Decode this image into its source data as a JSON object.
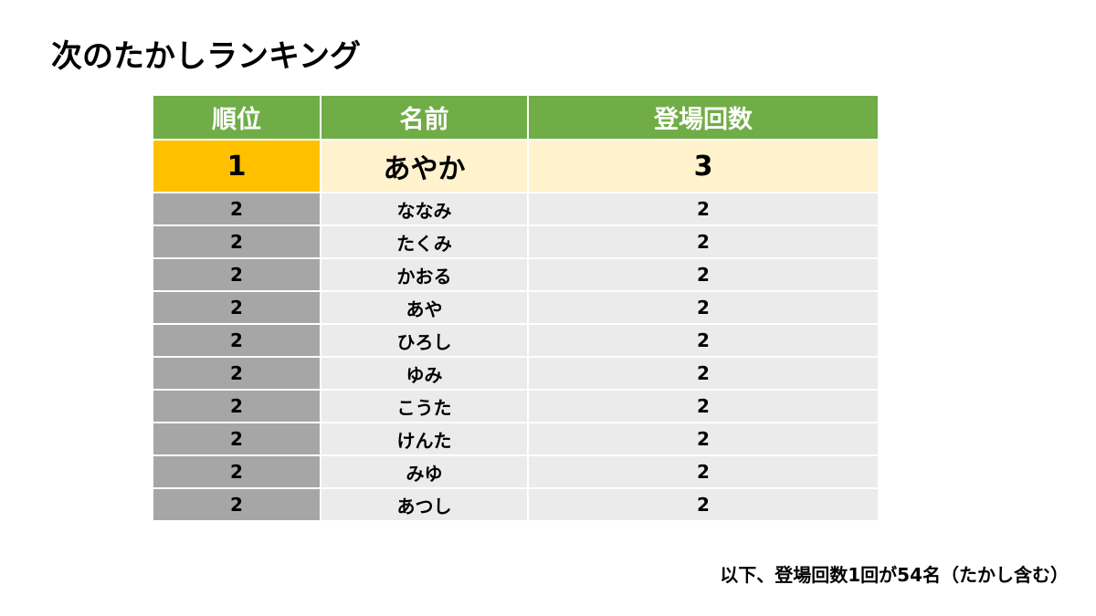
{
  "header": {
    "title": "次のたかしランキング"
  },
  "table": {
    "columns": [
      "順位",
      "名前",
      "登場回数"
    ],
    "rows": [
      [
        1,
        "あやか",
        3
      ],
      [
        2,
        "ななみ",
        2
      ],
      [
        2,
        "たくみ",
        2
      ],
      [
        2,
        "かおる",
        2
      ],
      [
        2,
        "あや",
        2
      ],
      [
        2,
        "ひろし",
        2
      ],
      [
        2,
        "ゆみ",
        2
      ],
      [
        2,
        "こうた",
        2
      ],
      [
        2,
        "けんた",
        2
      ],
      [
        2,
        "みゆ",
        2
      ],
      [
        2,
        "あつし",
        2
      ]
    ]
  },
  "footnote": "以下、登場回数1回が54名（たかし含む）"
}
